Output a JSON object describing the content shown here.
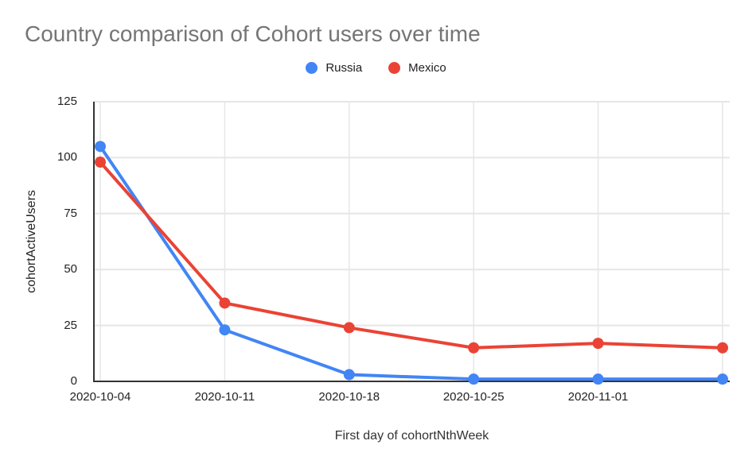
{
  "header": {
    "title": "Country comparison of Cohort users over time"
  },
  "legend": {
    "items": [
      {
        "label": "Russia",
        "color": "#4285f4"
      },
      {
        "label": "Mexico",
        "color": "#ea4335"
      }
    ]
  },
  "chart_data": {
    "type": "line",
    "title": "Country comparison of Cohort users over time",
    "xlabel": "First day of cohortNthWeek",
    "ylabel": "cohortActiveUsers",
    "categories": [
      "2020-10-04",
      "2020-10-11",
      "2020-10-18",
      "2020-10-25",
      "2020-11-01",
      ""
    ],
    "x_tick_labels": [
      "2020-10-04",
      "2020-10-11",
      "2020-10-18",
      "2020-10-25",
      "2020-11-01"
    ],
    "series": [
      {
        "name": "Russia",
        "color": "#4285f4",
        "values": [
          105,
          23,
          3,
          1,
          1,
          1
        ]
      },
      {
        "name": "Mexico",
        "color": "#ea4335",
        "values": [
          98,
          35,
          24,
          15,
          17,
          15
        ]
      }
    ],
    "ylim": [
      0,
      125
    ],
    "yticks": [
      0,
      25,
      50,
      75,
      100,
      125
    ],
    "grid": true,
    "legend_position": "top",
    "colors": {
      "grid": "#e6e6e6",
      "axis": "#333333",
      "title": "#757575",
      "tick_label": "#222222"
    }
  }
}
